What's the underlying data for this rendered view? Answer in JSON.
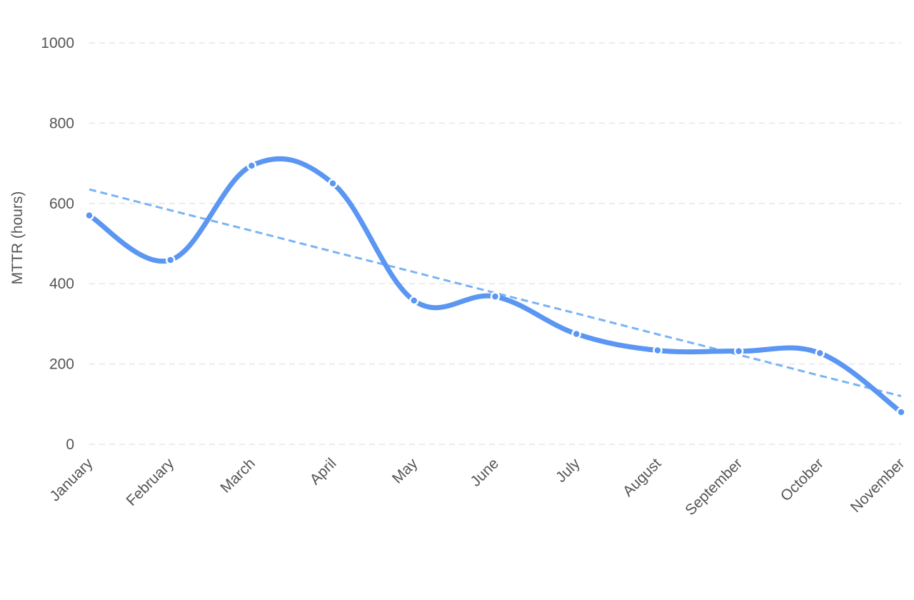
{
  "chart_data": {
    "type": "line",
    "title": "",
    "xlabel": "",
    "ylabel": "MTTR (hours)",
    "ylim": [
      0,
      1000
    ],
    "y_ticks": [
      0,
      200,
      400,
      600,
      800,
      1000
    ],
    "grid": true,
    "categories": [
      "January",
      "February",
      "March",
      "April",
      "May",
      "June",
      "July",
      "August",
      "September",
      "October",
      "November"
    ],
    "series": [
      {
        "values": [
          570,
          459,
          694,
          650,
          358,
          368,
          275,
          234,
          232,
          227,
          80
        ],
        "color": "#5b96f2",
        "style": "solid-smooth-with-markers"
      },
      {
        "values": [
          635,
          583,
          532,
          480,
          429,
          377,
          326,
          274,
          223,
          171,
          120
        ],
        "color": "#7ab3f5",
        "style": "dashed-trend"
      }
    ]
  }
}
